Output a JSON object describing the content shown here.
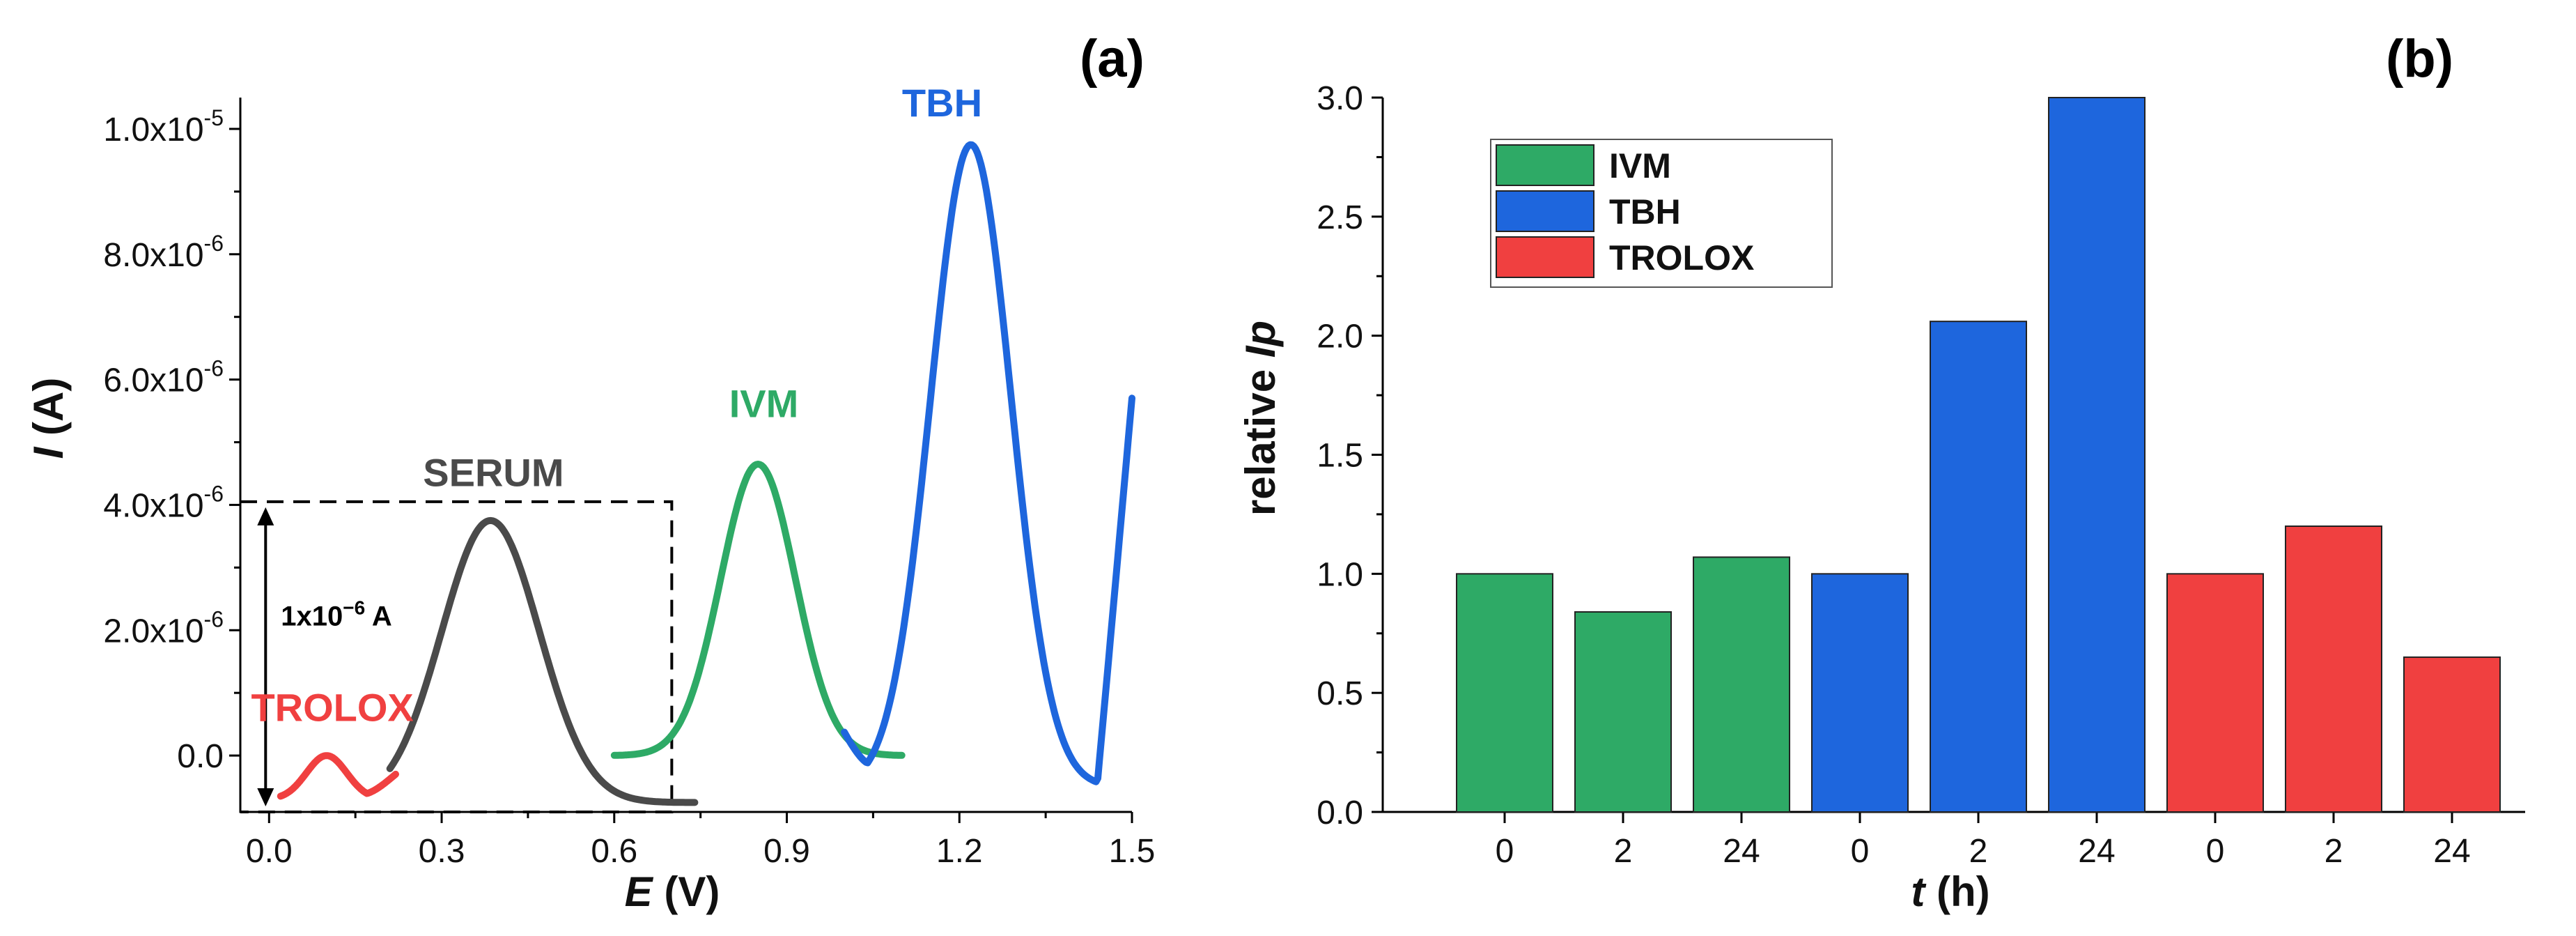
{
  "figure": {
    "panel_a_label": "(a)",
    "panel_b_label": "(b)"
  },
  "colors": {
    "IVM": "#2eaa66",
    "TBH": "#1e66dd",
    "TROLOX": "#f04040",
    "SERUM": "#4a4a4a"
  },
  "chart_data": [
    {
      "type": "line",
      "panel": "(a)",
      "xlabel_italic": "E",
      "xlabel_unit": " (V)",
      "ylabel_italic": "I",
      "ylabel_unit": " (A)",
      "xlim": [
        -0.05,
        1.5
      ],
      "ylim": [
        -9e-07,
        1.05e-05
      ],
      "x_ticks": [
        {
          "value": 0.0,
          "label": "0.0"
        },
        {
          "value": 0.3,
          "label": "0.3"
        },
        {
          "value": 0.6,
          "label": "0.6"
        },
        {
          "value": 0.9,
          "label": "0.9"
        },
        {
          "value": 1.2,
          "label": "1.2"
        },
        {
          "value": 1.5,
          "label": "1.5"
        }
      ],
      "y_ticks": [
        {
          "value": 0.0,
          "base": "0.0",
          "exp": ""
        },
        {
          "value": 2e-06,
          "base": "2.0x10",
          "exp": "-6"
        },
        {
          "value": 4e-06,
          "base": "4.0x10",
          "exp": "-6"
        },
        {
          "value": 6e-06,
          "base": "6.0x10",
          "exp": "-6"
        },
        {
          "value": 8e-06,
          "base": "8.0x10",
          "exp": "-6"
        },
        {
          "value": 1e-05,
          "base": "1.0x10",
          "exp": "-5"
        }
      ],
      "series": [
        {
          "name": "TROLOX",
          "label": "TROLOX",
          "peak_x": 0.1,
          "peak_y": -1e-09,
          "base_y": -7e-07,
          "x_range": [
            0.02,
            0.22
          ],
          "width": 0.035,
          "label_x": 0.11,
          "label_y": 5.5e-07
        },
        {
          "name": "SERUM",
          "label": "SERUM",
          "peak_x": 0.385,
          "peak_y": 3.75e-06,
          "base_y": -7.5e-07,
          "x_range": [
            0.21,
            0.74
          ],
          "width": 0.085,
          "label_x": 0.39,
          "label_y": 4.3e-06
        },
        {
          "name": "IVM",
          "label": "IVM",
          "peak_x": 0.85,
          "peak_y": 4.65e-06,
          "base_y": 0.0,
          "x_range": [
            0.6,
            1.1
          ],
          "width": 0.065,
          "label_x": 0.86,
          "label_y": 5.4e-06
        },
        {
          "name": "TBH",
          "label": "TBH",
          "peak_x": 1.22,
          "peak_y": 9.75e-06,
          "base_y": -5e-07,
          "x_range": [
            1.0,
            1.5
          ],
          "width": 0.07,
          "label_x": 1.17,
          "label_y": 1.02e-05
        }
      ],
      "annotation": {
        "scale_text": "1x10",
        "scale_exp": "−6",
        "scale_unit": " A",
        "box_x": [
          0.0,
          0.7
        ],
        "box_y": [
          -9e-07,
          4.05e-06
        ]
      }
    },
    {
      "type": "bar",
      "panel": "(b)",
      "xlabel_italic": "t",
      "xlabel_unit": " (h)",
      "ylabel_text": "relative ",
      "ylabel_italic": "Ip",
      "ylim": [
        0,
        3.0
      ],
      "y_ticks": [
        "0.0",
        "0.5",
        "1.0",
        "1.5",
        "2.0",
        "2.5",
        "3.0"
      ],
      "categories": [
        "0",
        "2",
        "24",
        "0",
        "2",
        "24",
        "0",
        "2",
        "24"
      ],
      "bar_series": [
        "IVM",
        "IVM",
        "IVM",
        "TBH",
        "TBH",
        "TBH",
        "TROLOX",
        "TROLOX",
        "TROLOX"
      ],
      "values": [
        1.0,
        0.84,
        1.07,
        1.0,
        2.06,
        3.0,
        1.0,
        1.2,
        0.65
      ],
      "legend": [
        "IVM",
        "TBH",
        "TROLOX"
      ]
    }
  ]
}
